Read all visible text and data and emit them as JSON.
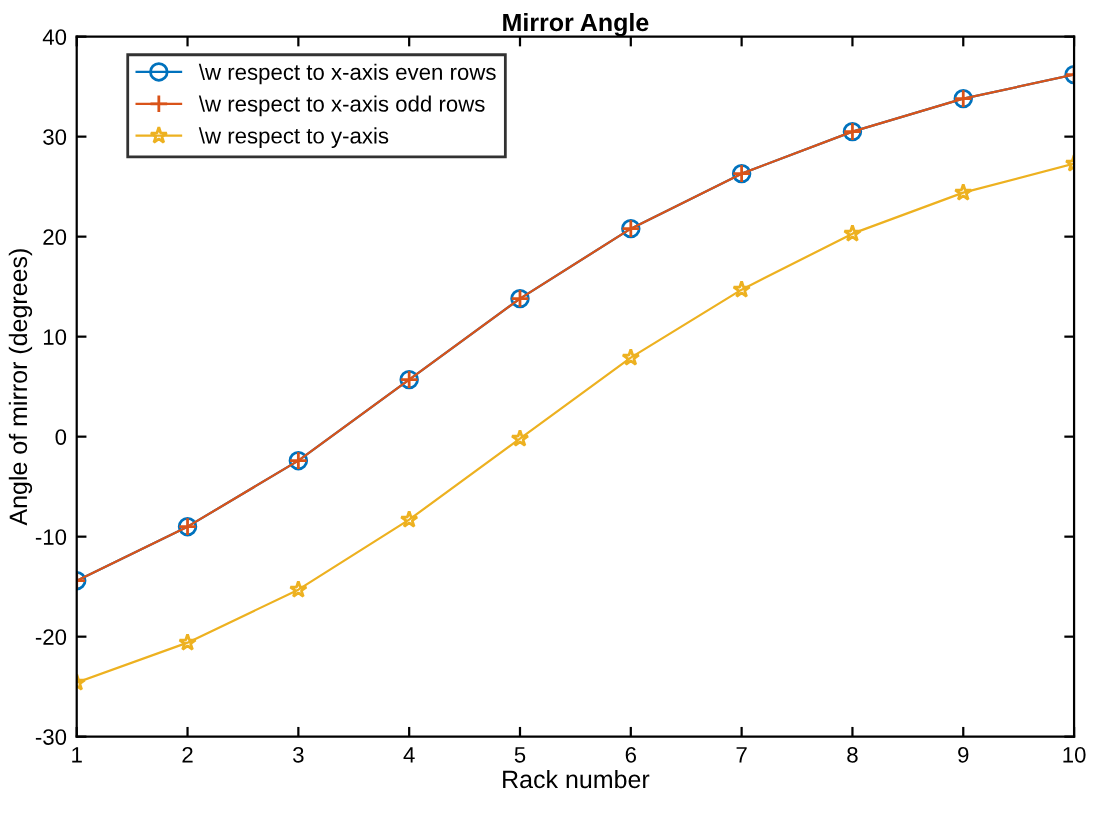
{
  "chart_data": {
    "type": "line",
    "title": "Mirror Angle",
    "xlabel": "Rack number",
    "ylabel": "Angle of mirror (degrees)",
    "x": [
      1,
      2,
      3,
      4,
      5,
      6,
      7,
      8,
      9,
      10
    ],
    "series": [
      {
        "name": "\\w respect to x-axis even rows",
        "color": "#0072bd",
        "marker": "circle",
        "values": [
          -14.4,
          -9.0,
          -2.4,
          5.7,
          13.8,
          20.8,
          26.3,
          30.5,
          33.8,
          36.2
        ]
      },
      {
        "name": "\\w respect to x-axis odd rows",
        "color": "#d95319",
        "marker": "cross",
        "values": [
          -14.4,
          -9.0,
          -2.4,
          5.7,
          13.8,
          20.8,
          26.3,
          30.5,
          33.8,
          36.2
        ]
      },
      {
        "name": "\\w respect to y-axis",
        "color": "#edb120",
        "marker": "star",
        "values": [
          -24.6,
          -20.6,
          -15.3,
          -8.3,
          -0.2,
          7.9,
          14.7,
          20.3,
          24.4,
          27.3
        ]
      }
    ],
    "xlim": [
      1,
      10
    ],
    "xticks": [
      1,
      2,
      3,
      4,
      5,
      6,
      7,
      8,
      9,
      10
    ],
    "ylim": [
      -30,
      40
    ],
    "yticks": [
      -30,
      -20,
      -10,
      0,
      10,
      20,
      30,
      40
    ],
    "grid": false,
    "legend": "top left",
    "line_style": "solid"
  }
}
